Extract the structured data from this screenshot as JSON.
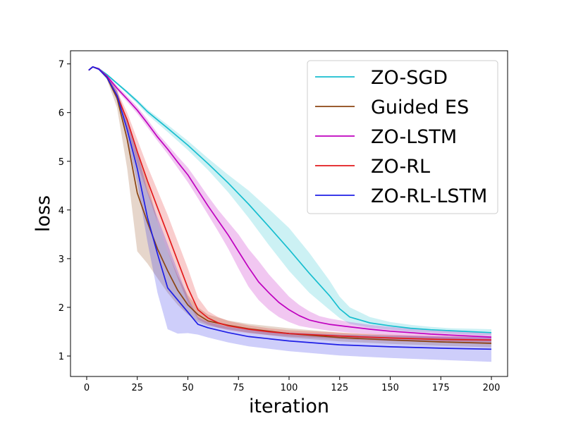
{
  "chart_data": {
    "type": "line",
    "title": "",
    "xlabel": "iteration",
    "ylabel": "loss",
    "xlim": [
      -8,
      208
    ],
    "ylim": [
      0.58,
      7.27
    ],
    "xticks": [
      0,
      25,
      50,
      75,
      100,
      125,
      150,
      175,
      200
    ],
    "yticks": [
      1,
      2,
      3,
      4,
      5,
      6,
      7
    ],
    "grid": false,
    "legend_position": "top-right",
    "series": [
      {
        "name": "ZO-SGD",
        "color": "#17becf",
        "x": [
          1,
          3,
          6,
          10,
          15,
          20,
          25,
          30,
          40,
          50,
          60,
          70,
          80,
          90,
          100,
          110,
          120,
          125,
          130,
          140,
          150,
          160,
          170,
          180,
          190,
          200
        ],
        "y": [
          6.87,
          6.94,
          6.9,
          6.78,
          6.6,
          6.42,
          6.23,
          6.02,
          5.68,
          5.33,
          4.95,
          4.55,
          4.12,
          3.66,
          3.19,
          2.7,
          2.24,
          1.97,
          1.8,
          1.68,
          1.62,
          1.57,
          1.54,
          1.52,
          1.5,
          1.48
        ],
        "lower": [
          6.87,
          6.93,
          6.88,
          6.76,
          6.58,
          6.38,
          6.18,
          5.96,
          5.6,
          5.23,
          4.82,
          4.36,
          3.84,
          3.28,
          2.75,
          2.3,
          1.95,
          1.78,
          1.66,
          1.58,
          1.54,
          1.5,
          1.48,
          1.46,
          1.44,
          1.42
        ],
        "upper": [
          6.87,
          6.95,
          6.92,
          6.8,
          6.62,
          6.45,
          6.27,
          6.07,
          5.75,
          5.42,
          5.06,
          4.72,
          4.4,
          4.02,
          3.63,
          3.12,
          2.55,
          2.22,
          2.0,
          1.8,
          1.7,
          1.64,
          1.6,
          1.57,
          1.56,
          1.55
        ]
      },
      {
        "name": "Guided ES",
        "color": "#8b4513",
        "x": [
          1,
          3,
          6,
          10,
          15,
          20,
          25,
          30,
          35,
          40,
          45,
          50,
          55,
          60,
          70,
          80,
          100,
          125,
          150,
          175,
          200
        ],
        "y": [
          6.87,
          6.94,
          6.89,
          6.72,
          6.3,
          5.45,
          4.35,
          3.75,
          3.2,
          2.75,
          2.35,
          2.05,
          1.85,
          1.72,
          1.63,
          1.56,
          1.46,
          1.38,
          1.33,
          1.29,
          1.26
        ],
        "lower": [
          6.87,
          6.93,
          6.88,
          6.68,
          6.1,
          4.85,
          3.15,
          2.9,
          2.6,
          2.3,
          2.05,
          1.85,
          1.7,
          1.62,
          1.55,
          1.48,
          1.38,
          1.3,
          1.25,
          1.21,
          1.18
        ],
        "upper": [
          6.87,
          6.95,
          6.9,
          6.76,
          6.45,
          5.85,
          5.2,
          4.6,
          3.75,
          3.15,
          2.65,
          2.25,
          2.0,
          1.85,
          1.73,
          1.66,
          1.57,
          1.48,
          1.42,
          1.38,
          1.34
        ]
      },
      {
        "name": "ZO-LSTM",
        "color": "#bf00bf",
        "x": [
          1,
          3,
          6,
          10,
          15,
          20,
          25,
          30,
          35,
          40,
          45,
          50,
          55,
          60,
          65,
          70,
          75,
          80,
          85,
          90,
          95,
          100,
          105,
          110,
          115,
          120,
          130,
          140,
          150,
          160,
          170,
          180,
          190,
          200
        ],
        "y": [
          6.87,
          6.94,
          6.9,
          6.75,
          6.5,
          6.28,
          6.05,
          5.78,
          5.5,
          5.25,
          4.98,
          4.72,
          4.4,
          4.08,
          3.78,
          3.48,
          3.15,
          2.82,
          2.52,
          2.3,
          2.1,
          1.95,
          1.83,
          1.74,
          1.69,
          1.65,
          1.6,
          1.55,
          1.51,
          1.48,
          1.45,
          1.43,
          1.41,
          1.39
        ],
        "lower": [
          6.87,
          6.93,
          6.88,
          6.72,
          6.45,
          6.22,
          5.98,
          5.7,
          5.42,
          5.15,
          4.86,
          4.57,
          4.24,
          3.9,
          3.56,
          3.2,
          2.8,
          2.42,
          2.15,
          1.95,
          1.8,
          1.7,
          1.62,
          1.58,
          1.55,
          1.52,
          1.48,
          1.45,
          1.42,
          1.39,
          1.37,
          1.35,
          1.33,
          1.31
        ],
        "upper": [
          6.87,
          6.95,
          6.92,
          6.78,
          6.55,
          6.34,
          6.12,
          5.86,
          5.58,
          5.34,
          5.1,
          4.87,
          4.58,
          4.28,
          4.0,
          3.75,
          3.5,
          3.2,
          2.95,
          2.68,
          2.45,
          2.22,
          2.05,
          1.92,
          1.82,
          1.77,
          1.7,
          1.64,
          1.6,
          1.56,
          1.53,
          1.51,
          1.49,
          1.47
        ]
      },
      {
        "name": "ZO-RL",
        "color": "#e31a1c",
        "x": [
          1,
          3,
          6,
          10,
          15,
          20,
          25,
          30,
          35,
          40,
          45,
          50,
          55,
          60,
          65,
          70,
          80,
          90,
          100,
          125,
          150,
          175,
          200
        ],
        "y": [
          6.87,
          6.94,
          6.89,
          6.73,
          6.35,
          5.85,
          5.2,
          4.6,
          4.05,
          3.5,
          2.95,
          2.4,
          1.95,
          1.78,
          1.68,
          1.62,
          1.55,
          1.5,
          1.46,
          1.41,
          1.37,
          1.34,
          1.33
        ],
        "lower": [
          6.87,
          6.93,
          6.88,
          6.7,
          6.25,
          5.7,
          4.95,
          4.35,
          3.75,
          3.15,
          2.6,
          2.1,
          1.75,
          1.65,
          1.58,
          1.53,
          1.47,
          1.43,
          1.4,
          1.35,
          1.31,
          1.28,
          1.26
        ],
        "upper": [
          6.87,
          6.95,
          6.9,
          6.76,
          6.45,
          6.0,
          5.45,
          4.9,
          4.4,
          3.9,
          3.35,
          2.8,
          2.2,
          1.92,
          1.8,
          1.72,
          1.63,
          1.57,
          1.53,
          1.48,
          1.44,
          1.41,
          1.4
        ]
      },
      {
        "name": "ZO-RL-LSTM",
        "color": "#1f1fe6",
        "x": [
          1,
          3,
          6,
          10,
          15,
          20,
          25,
          30,
          35,
          40,
          45,
          50,
          55,
          60,
          70,
          80,
          100,
          125,
          150,
          175,
          200
        ],
        "y": [
          6.87,
          6.94,
          6.89,
          6.72,
          6.35,
          5.65,
          4.85,
          3.85,
          3.1,
          2.4,
          2.15,
          1.9,
          1.65,
          1.58,
          1.48,
          1.4,
          1.31,
          1.23,
          1.19,
          1.16,
          1.14
        ],
        "lower": [
          6.87,
          6.93,
          6.88,
          6.7,
          6.25,
          5.45,
          4.55,
          3.35,
          2.3,
          1.55,
          1.46,
          1.47,
          1.44,
          1.38,
          1.28,
          1.2,
          1.1,
          1.01,
          0.96,
          0.92,
          0.88
        ],
        "upper": [
          6.87,
          6.95,
          6.9,
          6.75,
          6.45,
          5.85,
          5.2,
          4.4,
          3.85,
          3.3,
          2.75,
          2.2,
          1.8,
          1.7,
          1.6,
          1.54,
          1.48,
          1.44,
          1.42,
          1.4,
          1.39
        ]
      }
    ]
  }
}
